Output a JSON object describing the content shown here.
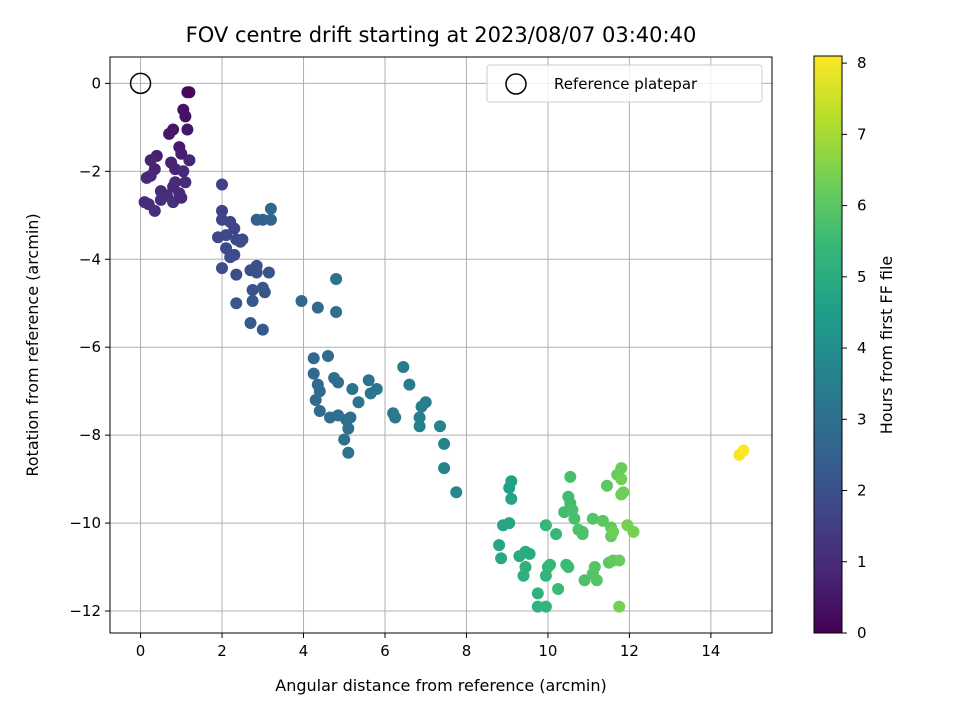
{
  "chart_data": {
    "type": "scatter",
    "title": "FOV centre drift starting at 2023/08/07 03:40:40",
    "xlabel": "Angular distance from reference (arcmin)",
    "ylabel": "Rotation from reference (arcmin)",
    "xlim": [
      -0.75,
      15.5
    ],
    "ylim": [
      -12.5,
      0.6
    ],
    "xticks": [
      0,
      2,
      4,
      6,
      8,
      10,
      12,
      14
    ],
    "yticks": [
      0,
      -2,
      -4,
      -6,
      -8,
      -10,
      -12
    ],
    "grid": true,
    "legend": {
      "placement": "top-right",
      "entries": [
        "Reference platepar"
      ]
    },
    "reference_point": {
      "x": 0,
      "y": 0
    },
    "colorbar": {
      "label": "Hours from first FF file",
      "range": [
        0,
        8.1
      ],
      "ticks": [
        0,
        1,
        2,
        3,
        4,
        5,
        6,
        7,
        8
      ],
      "colormap": [
        "#440154",
        "#482878",
        "#3e4989",
        "#31688e",
        "#26828e",
        "#1f9e89",
        "#35b779",
        "#6ece58",
        "#b5de2b",
        "#fde725"
      ]
    },
    "points": [
      [
        1.15,
        -0.2,
        0.2
      ],
      [
        1.2,
        -0.2,
        0.2
      ],
      [
        1.05,
        -0.6,
        0.4
      ],
      [
        1.1,
        -0.75,
        0.4
      ],
      [
        1.15,
        -1.05,
        0.5
      ],
      [
        0.8,
        -1.05,
        0.5
      ],
      [
        0.7,
        -1.15,
        0.5
      ],
      [
        0.95,
        -1.45,
        0.6
      ],
      [
        1.0,
        -1.6,
        0.7
      ],
      [
        0.4,
        -1.65,
        0.7
      ],
      [
        0.25,
        -1.75,
        0.8
      ],
      [
        0.75,
        -1.8,
        0.8
      ],
      [
        1.2,
        -1.75,
        0.8
      ],
      [
        0.85,
        -1.95,
        0.8
      ],
      [
        0.35,
        -1.95,
        0.8
      ],
      [
        1.05,
        -2.0,
        0.9
      ],
      [
        0.25,
        -2.1,
        0.9
      ],
      [
        0.15,
        -2.15,
        0.9
      ],
      [
        0.85,
        -2.25,
        0.9
      ],
      [
        1.1,
        -2.25,
        1.0
      ],
      [
        0.5,
        -2.45,
        1.0
      ],
      [
        0.95,
        -2.5,
        1.0
      ],
      [
        0.65,
        -2.55,
        1.0
      ],
      [
        0.5,
        -2.65,
        1.1
      ],
      [
        0.1,
        -2.7,
        1.0
      ],
      [
        0.2,
        -2.75,
        1.0
      ],
      [
        0.8,
        -2.7,
        1.1
      ],
      [
        0.35,
        -2.9,
        1.1
      ],
      [
        0.8,
        -2.35,
        1.0
      ],
      [
        1.0,
        -2.6,
        0.9
      ],
      [
        2.0,
        -2.3,
        1.6
      ],
      [
        2.0,
        -2.9,
        1.6
      ],
      [
        2.0,
        -3.1,
        1.7
      ],
      [
        2.2,
        -3.15,
        1.7
      ],
      [
        2.3,
        -3.3,
        1.7
      ],
      [
        2.1,
        -3.45,
        1.8
      ],
      [
        2.35,
        -3.55,
        1.8
      ],
      [
        2.5,
        -3.55,
        1.8
      ],
      [
        1.9,
        -3.5,
        1.8
      ],
      [
        2.1,
        -3.75,
        1.8
      ],
      [
        2.3,
        -3.9,
        1.9
      ],
      [
        2.45,
        -3.6,
        1.9
      ],
      [
        2.2,
        -3.95,
        1.9
      ],
      [
        2.0,
        -4.2,
        1.9
      ],
      [
        2.35,
        -4.35,
        1.9
      ],
      [
        2.7,
        -4.25,
        2.0
      ],
      [
        2.85,
        -4.15,
        2.0
      ],
      [
        2.85,
        -4.3,
        2.1
      ],
      [
        3.15,
        -4.3,
        2.1
      ],
      [
        2.75,
        -4.7,
        2.1
      ],
      [
        3.0,
        -4.65,
        2.2
      ],
      [
        3.05,
        -4.75,
        2.2
      ],
      [
        2.75,
        -4.95,
        2.2
      ],
      [
        2.35,
        -5.0,
        2.2
      ],
      [
        2.7,
        -5.45,
        2.3
      ],
      [
        3.0,
        -5.6,
        2.3
      ],
      [
        2.85,
        -3.1,
        2.4
      ],
      [
        3.0,
        -3.1,
        2.5
      ],
      [
        3.2,
        -3.1,
        2.6
      ],
      [
        3.2,
        -2.85,
        2.7
      ],
      [
        3.95,
        -4.95,
        2.8
      ],
      [
        4.35,
        -5.1,
        2.8
      ],
      [
        4.8,
        -5.2,
        2.9
      ],
      [
        4.8,
        -4.45,
        3.0
      ],
      [
        4.25,
        -6.25,
        2.7
      ],
      [
        4.6,
        -6.2,
        2.8
      ],
      [
        4.25,
        -6.6,
        2.7
      ],
      [
        4.35,
        -6.85,
        2.7
      ],
      [
        4.4,
        -7.0,
        2.8
      ],
      [
        4.3,
        -7.2,
        2.8
      ],
      [
        4.4,
        -7.45,
        2.8
      ],
      [
        4.75,
        -6.7,
        2.9
      ],
      [
        4.85,
        -6.8,
        2.9
      ],
      [
        4.65,
        -7.6,
        2.9
      ],
      [
        4.85,
        -7.55,
        2.9
      ],
      [
        5.05,
        -7.65,
        3.0
      ],
      [
        5.15,
        -7.6,
        3.0
      ],
      [
        5.1,
        -7.85,
        3.0
      ],
      [
        5.0,
        -8.1,
        3.0
      ],
      [
        5.1,
        -8.4,
        3.1
      ],
      [
        5.2,
        -6.95,
        3.1
      ],
      [
        5.35,
        -7.25,
        3.1
      ],
      [
        5.6,
        -6.75,
        3.2
      ],
      [
        5.65,
        -7.05,
        3.2
      ],
      [
        5.8,
        -6.95,
        3.2
      ],
      [
        6.2,
        -7.5,
        3.3
      ],
      [
        6.25,
        -7.6,
        3.3
      ],
      [
        6.45,
        -6.45,
        3.4
      ],
      [
        6.6,
        -6.85,
        3.4
      ],
      [
        6.9,
        -7.35,
        3.5
      ],
      [
        7.0,
        -7.25,
        3.5
      ],
      [
        6.85,
        -7.6,
        3.5
      ],
      [
        6.85,
        -7.8,
        3.5
      ],
      [
        7.35,
        -7.8,
        3.6
      ],
      [
        7.45,
        -8.2,
        3.7
      ],
      [
        7.45,
        -8.75,
        3.7
      ],
      [
        7.75,
        -9.3,
        3.8
      ],
      [
        9.1,
        -9.05,
        4.6
      ],
      [
        9.05,
        -9.2,
        4.6
      ],
      [
        9.1,
        -9.45,
        4.7
      ],
      [
        8.9,
        -10.05,
        4.7
      ],
      [
        9.05,
        -10.0,
        4.8
      ],
      [
        8.8,
        -10.5,
        4.8
      ],
      [
        8.85,
        -10.8,
        4.9
      ],
      [
        9.3,
        -10.75,
        5.0
      ],
      [
        9.45,
        -10.65,
        5.0
      ],
      [
        9.55,
        -10.7,
        5.0
      ],
      [
        9.45,
        -11.0,
        5.1
      ],
      [
        9.4,
        -11.2,
        5.1
      ],
      [
        9.75,
        -11.6,
        5.2
      ],
      [
        9.75,
        -11.9,
        5.2
      ],
      [
        9.95,
        -11.9,
        5.3
      ],
      [
        9.95,
        -11.2,
        5.3
      ],
      [
        10.0,
        -11.0,
        5.3
      ],
      [
        10.05,
        -10.95,
        5.4
      ],
      [
        9.95,
        -10.05,
        5.4
      ],
      [
        10.2,
        -10.25,
        5.4
      ],
      [
        10.25,
        -11.5,
        5.5
      ],
      [
        10.45,
        -10.95,
        5.5
      ],
      [
        10.5,
        -11.0,
        5.5
      ],
      [
        10.4,
        -9.75,
        5.6
      ],
      [
        10.5,
        -9.4,
        5.6
      ],
      [
        10.55,
        -9.55,
        5.6
      ],
      [
        10.55,
        -8.95,
        5.7
      ],
      [
        10.6,
        -9.7,
        5.7
      ],
      [
        10.65,
        -9.9,
        5.7
      ],
      [
        10.75,
        -10.15,
        5.8
      ],
      [
        10.85,
        -10.2,
        5.8
      ],
      [
        10.85,
        -10.25,
        5.8
      ],
      [
        10.9,
        -11.3,
        5.8
      ],
      [
        11.1,
        -11.15,
        5.9
      ],
      [
        11.15,
        -11.0,
        5.9
      ],
      [
        11.2,
        -11.3,
        5.9
      ],
      [
        11.1,
        -9.9,
        5.9
      ],
      [
        11.35,
        -9.95,
        6.0
      ],
      [
        11.45,
        -9.15,
        6.0
      ],
      [
        11.5,
        -10.9,
        6.0
      ],
      [
        11.6,
        -10.85,
        6.1
      ],
      [
        11.55,
        -10.1,
        6.1
      ],
      [
        11.55,
        -10.3,
        6.1
      ],
      [
        11.75,
        -10.85,
        6.2
      ],
      [
        11.7,
        -8.9,
        6.2
      ],
      [
        11.8,
        -8.75,
        6.2
      ],
      [
        11.8,
        -9.0,
        6.3
      ],
      [
        11.85,
        -9.3,
        6.3
      ],
      [
        11.8,
        -9.35,
        6.3
      ],
      [
        11.95,
        -10.05,
        6.4
      ],
      [
        12.1,
        -10.2,
        6.4
      ],
      [
        11.75,
        -11.9,
        6.4
      ],
      [
        11.6,
        -10.2,
        6.3
      ],
      [
        14.7,
        -8.45,
        8.0
      ],
      [
        14.8,
        -8.35,
        8.1
      ]
    ]
  }
}
